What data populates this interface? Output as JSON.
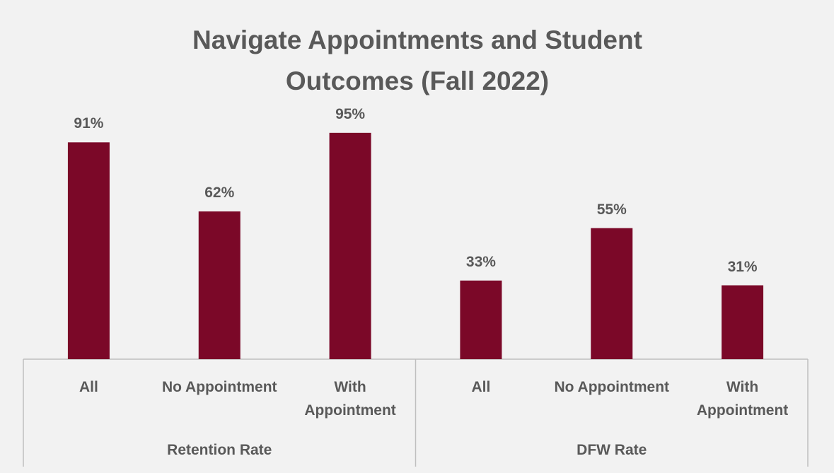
{
  "chart_data": {
    "type": "bar",
    "title": "Navigate Appointments and Student Outcomes (Fall 2022)",
    "color": "#7b0828",
    "groups": [
      {
        "name": "Retention Rate",
        "categories": [
          "All",
          "No Appointment",
          "With Appointment"
        ],
        "values": [
          91,
          62,
          95
        ],
        "value_labels": [
          "91%",
          "62%",
          "95%"
        ]
      },
      {
        "name": "DFW Rate",
        "categories": [
          "All",
          "No Appointment",
          "With Appointment"
        ],
        "values": [
          33,
          55,
          31
        ],
        "value_labels": [
          "33%",
          "55%",
          "31%"
        ]
      }
    ]
  }
}
